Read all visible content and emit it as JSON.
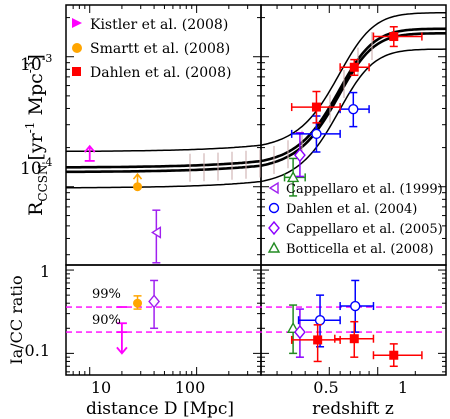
{
  "chart_data": {
    "type": "scatter",
    "axes": {
      "x_left": {
        "label": "distance D [Mpc]",
        "scale": "log",
        "range": [
          6,
          400
        ],
        "ticks": [
          "10",
          "100"
        ]
      },
      "x_right": {
        "label": "redshift z",
        "scale": "log1p",
        "range": [
          0.0,
          2.0
        ],
        "ticks": [
          "0.5",
          "1"
        ]
      },
      "y_top": {
        "label": "R_CCSN [yr^-1 Mpc^-3]",
        "scale": "log",
        "range": [
          2.5e-05,
          0.0025
        ],
        "ticks": [
          "10^-4",
          "10^-3"
        ]
      },
      "y_bottom": {
        "label": "Ia/CC ratio",
        "scale": "log",
        "range": [
          0.055,
          1.15
        ],
        "ticks": [
          "0.1",
          "1"
        ]
      }
    },
    "label_parts": {
      "rate_main": "R",
      "rate_sub": "CCSN",
      "unit_yr": "[yr",
      "unit_yr_exp": "-1",
      "unit_mpc": " Mpc",
      "unit_mpc_exp": "-3",
      "unit_close": "]",
      "tick_base": "10",
      "tick_exp_4": "-4",
      "tick_exp_3": "-3"
    },
    "legend_top_left": [
      {
        "name": "Kistler et al. (2008)",
        "color": "#ff00ff",
        "marker": "triangle-right"
      },
      {
        "name": "Smartt et al. (2008)",
        "color": "#ffa500",
        "marker": "circle-filled"
      },
      {
        "name": "Dahlen et al. (2008)",
        "color": "#ff0000",
        "marker": "square-filled"
      }
    ],
    "legend_bottom_right": [
      {
        "name": "Cappellaro et al. (1999)",
        "color": "#a020f0",
        "marker": "triangle-left-open"
      },
      {
        "name": "Dahlen et al. (2004)",
        "color": "#0000ff",
        "marker": "circle-open"
      },
      {
        "name": "Cappellaro et al. (2005)",
        "color": "#8b00ff",
        "marker": "diamond-open"
      },
      {
        "name": "Botticella et al. (2008)",
        "color": "#228b22",
        "marker": "triangle-up-open"
      }
    ],
    "annotations": {
      "percent_99": "99%",
      "percent_90": "90%"
    },
    "rate_model": {
      "plateau_low": 0.000135,
      "plateau_high": 0.00158,
      "band_factor": 1.15
    },
    "series_rate": [
      {
        "name": "Kistler et al. (2008)",
        "panel": "left",
        "color": "#ff00ff",
        "marker": "arrow-up",
        "points": [
          {
            "x": 10,
            "y": 0.000158,
            "yarrow_to": 0.000205
          }
        ]
      },
      {
        "name": "Smartt et al. (2008)",
        "panel": "left",
        "color": "#ffa500",
        "marker": "circle-filled",
        "points": [
          {
            "x": 28,
            "y": 0.0001,
            "yarrow_to": 0.000125
          }
        ]
      },
      {
        "name": "Cappellaro et al. (1999)",
        "panel": "left",
        "color": "#a020f0",
        "marker": "triangle-left-open",
        "points": [
          {
            "x": 42,
            "y": 4.45e-05,
            "ylo": 2.6e-05,
            "yhi": 6.6e-05
          }
        ]
      },
      {
        "name": "Botticella et al. (2008)",
        "panel": "right",
        "color": "#228b22",
        "marker": "triangle-up-open",
        "points": [
          {
            "x": 0.21,
            "y": 0.000118,
            "ylo": 8.5e-05,
            "yhi": 0.000165,
            "xlo": 0.15,
            "xhi": 0.3
          }
        ]
      },
      {
        "name": "Cappellaro et al. (2005)",
        "panel": "right",
        "color": "#8b00ff",
        "marker": "diamond-open",
        "points": [
          {
            "x": 0.26,
            "y": 0.000175,
            "ylo": 0.00012,
            "yhi": 0.00026
          }
        ]
      },
      {
        "name": "Dahlen et al. (2004)",
        "panel": "right",
        "color": "#0000ff",
        "marker": "circle-open",
        "points": [
          {
            "x": 0.39,
            "y": 0.000255,
            "ylo": 0.000185,
            "yhi": 0.00035,
            "xlo": 0.2,
            "xhi": 0.6
          },
          {
            "x": 0.73,
            "y": 0.000395,
            "ylo": 0.00029,
            "yhi": 0.00053,
            "xlo": 0.6,
            "xhi": 0.9
          }
        ]
      },
      {
        "name": "Dahlen et al. (2008)",
        "panel": "right",
        "color": "#ff0000",
        "marker": "square-filled",
        "points": [
          {
            "x": 0.39,
            "y": 0.00041,
            "ylo": 0.00031,
            "yhi": 0.00054,
            "xlo": 0.2,
            "xhi": 0.6
          },
          {
            "x": 0.74,
            "y": 0.00083,
            "ylo": 0.00072,
            "yhi": 0.00095,
            "xlo": 0.6,
            "xhi": 0.9
          },
          {
            "x": 1.2,
            "y": 0.00143,
            "ylo": 0.0012,
            "yhi": 0.0017,
            "xlo": 0.95,
            "xhi": 1.6
          }
        ]
      }
    ],
    "series_ratio": [
      {
        "name": "Smartt et al. (2008)",
        "panel": "left",
        "color": "#ffa500",
        "marker": "circle-filled",
        "points": [
          {
            "x": 28,
            "y": 0.4,
            "ylo": 0.34,
            "yhi": 0.49
          }
        ]
      },
      {
        "name": "Cappellaro et al. (1999)",
        "panel": "left",
        "color": "#a020f0",
        "marker": "diamond-open",
        "points": [
          {
            "x": 40,
            "y": 0.42,
            "ylo": 0.2,
            "yhi": 0.75
          }
        ]
      },
      {
        "name": "Kistler et al. (2008)",
        "panel": "left",
        "color": "#ff00ff",
        "marker": "arrow-down",
        "points": [
          {
            "x": 20,
            "y": 0.23,
            "yarrow_to": 0.1
          }
        ]
      },
      {
        "name": "Botticella et al. (2008)",
        "panel": "right",
        "color": "#228b22",
        "marker": "triangle-up-open",
        "points": [
          {
            "x": 0.21,
            "y": 0.2,
            "ylo": 0.1,
            "yhi": 0.38
          }
        ]
      },
      {
        "name": "Cappellaro et al. (2005)",
        "panel": "right",
        "color": "#8b00ff",
        "marker": "diamond-open",
        "points": [
          {
            "x": 0.26,
            "y": 0.18,
            "ylo": 0.09,
            "yhi": 0.34
          }
        ]
      },
      {
        "name": "Dahlen et al. (2004)",
        "panel": "right",
        "color": "#0000ff",
        "marker": "circle-open",
        "points": [
          {
            "x": 0.42,
            "y": 0.25,
            "ylo": 0.12,
            "yhi": 0.5,
            "xlo": 0.25,
            "xhi": 0.6
          },
          {
            "x": 0.75,
            "y": 0.37,
            "ylo": 0.18,
            "yhi": 0.75,
            "xlo": 0.6,
            "xhi": 0.95
          }
        ]
      },
      {
        "name": "Dahlen et al. (2008)",
        "panel": "right",
        "color": "#ff0000",
        "marker": "square-filled",
        "points": [
          {
            "x": 0.4,
            "y": 0.145,
            "ylo": 0.08,
            "yhi": 0.22,
            "xlo": 0.2,
            "xhi": 0.6
          },
          {
            "x": 0.74,
            "y": 0.15,
            "ylo": 0.09,
            "yhi": 0.24,
            "xlo": 0.55,
            "xhi": 0.95
          },
          {
            "x": 1.2,
            "y": 0.095,
            "ylo": 0.07,
            "yhi": 0.13,
            "xlo": 0.95,
            "xhi": 1.6
          }
        ]
      }
    ],
    "ratio_reference_lines": [
      {
        "label": "99%",
        "y": 0.36,
        "color": "#ff00ff",
        "style": "dashed"
      },
      {
        "label": "90%",
        "y": 0.18,
        "color": "#ff00ff",
        "style": "dashed"
      }
    ]
  }
}
